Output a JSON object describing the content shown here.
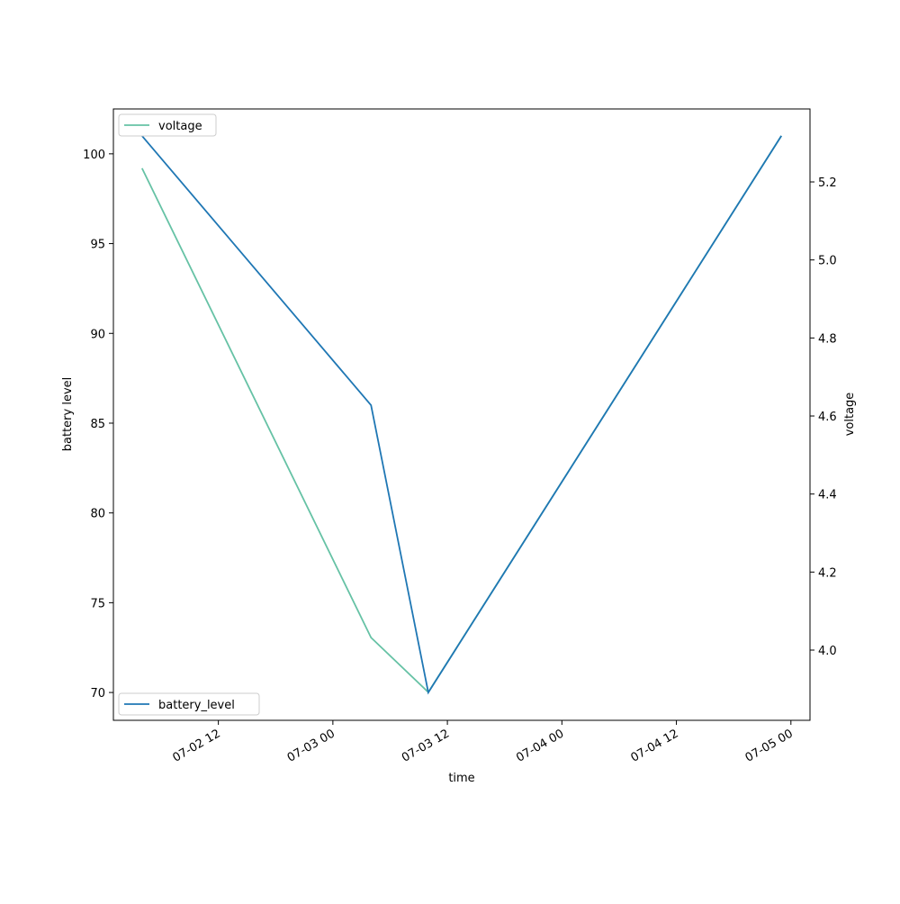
{
  "chart_data": {
    "type": "line",
    "x_label": "time",
    "y_label": "battery level",
    "y2_label": "voltage",
    "x": [
      "07-02 04",
      "07-03 04",
      "07-03 10",
      "07-04 23"
    ],
    "xlim": [
      "07-02 01",
      "07-05 02"
    ],
    "xticks": [
      "07-02 12",
      "07-03 00",
      "07-03 12",
      "07-04 00",
      "07-04 12",
      "07-05 00"
    ],
    "ylim": [
      68.45,
      102.5
    ],
    "yticks": [
      70,
      75,
      80,
      85,
      90,
      95,
      100
    ],
    "y2lim": [
      3.82,
      5.387
    ],
    "y2ticks": [
      {
        "value": 4,
        "label": "4.0"
      },
      4.2,
      4.4,
      4.6,
      4.8,
      {
        "value": 5,
        "label": "5.0"
      },
      5.2
    ],
    "series": [
      {
        "name": "battery_level",
        "color": "#1f77b4",
        "values": [
          101,
          86,
          70,
          101
        ],
        "legend": "lower left"
      },
      {
        "name": "voltage",
        "color": "#66c2a5",
        "axis": "y2",
        "values": [
          5.235,
          4.032,
          3.892,
          5.318
        ],
        "legend": "upper left"
      }
    ]
  }
}
